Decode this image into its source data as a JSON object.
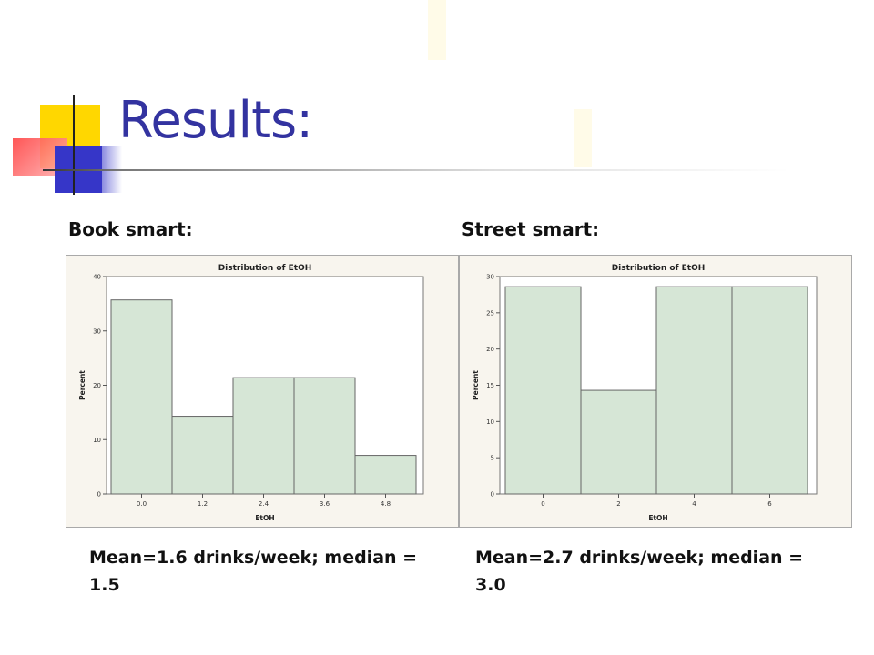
{
  "slide": {
    "title": "Results:"
  },
  "left": {
    "label": "Book smart:",
    "caption": "Mean=1.6 drinks/week; median = 1.5"
  },
  "right": {
    "label": "Street smart:",
    "caption": "Mean=2.7 drinks/week; median = 3.0"
  },
  "chart_data": [
    {
      "type": "bar",
      "title": "Distribution of EtOH",
      "xlabel": "EtOH",
      "ylabel": "Percent",
      "categories": [
        "0.0",
        "1.2",
        "2.4",
        "3.6",
        "4.8"
      ],
      "values": [
        35.7,
        14.3,
        21.4,
        21.4,
        7.1
      ],
      "ylim": [
        0,
        40
      ],
      "yticks": [
        0,
        10,
        20,
        30,
        40
      ],
      "grid": false
    },
    {
      "type": "bar",
      "title": "Distribution of EtOH",
      "xlabel": "EtOH",
      "ylabel": "Percent",
      "categories": [
        "0",
        "2",
        "4",
        "6"
      ],
      "values": [
        28.6,
        14.3,
        28.6,
        28.6
      ],
      "ylim": [
        0,
        30
      ],
      "yticks": [
        0,
        5,
        10,
        15,
        20,
        25,
        30
      ],
      "grid": false
    }
  ]
}
